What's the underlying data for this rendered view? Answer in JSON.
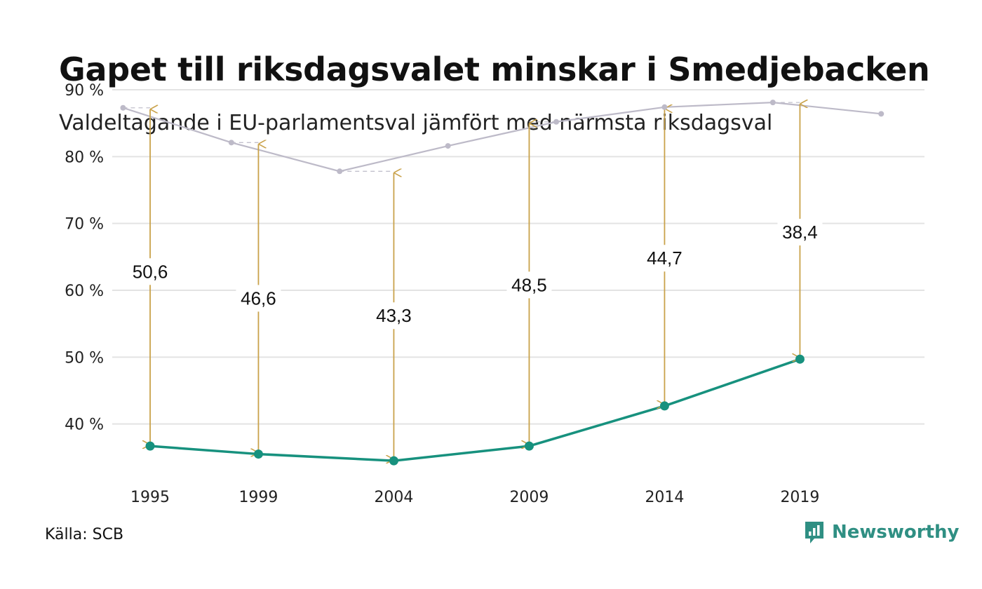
{
  "header": {
    "title": "Gapet till riksdagsvalet minskar i Smedjebacken",
    "subtitle": "Valdeltagande i EU-parlamentsval jämfört med närmsta riksdagsval"
  },
  "footer": {
    "source": "Källa: SCB",
    "brand": "Newsworthy",
    "brand_icon": "bar-chart-speech-bubble-icon"
  },
  "colors": {
    "eu_line": "#17917e",
    "riksdag_line": "#bdbac8",
    "gap_arrow": "#c9a24a",
    "grid": "#e3e3e3",
    "brand": "#2f8f83"
  },
  "chart_data": {
    "type": "line",
    "ylim": [
      30,
      90
    ],
    "yticks": [
      {
        "value": 40,
        "label": "40 %"
      },
      {
        "value": 50,
        "label": "50 %"
      },
      {
        "value": 60,
        "label": "60 %"
      },
      {
        "value": 70,
        "label": "70 %"
      },
      {
        "value": 80,
        "label": "80 %"
      },
      {
        "value": 90,
        "label": "90 %"
      }
    ],
    "xlim": [
      1993.6,
      2023.6
    ],
    "xticks": [
      {
        "value": 1995,
        "label": "1995"
      },
      {
        "value": 1999,
        "label": "1999"
      },
      {
        "value": 2004,
        "label": "2004"
      },
      {
        "value": 2009,
        "label": "2009"
      },
      {
        "value": 2014,
        "label": "2014"
      },
      {
        "value": 2019,
        "label": "2019"
      }
    ],
    "grid": true,
    "series": [
      {
        "key": "riksdag",
        "x": [
          1994,
          1998,
          2002,
          2006,
          2010,
          2014,
          2018,
          2022
        ],
        "values": [
          87.3,
          82.1,
          77.8,
          81.6,
          85.2,
          87.4,
          88.1,
          86.4
        ]
      },
      {
        "key": "eu",
        "x": [
          1995,
          1999,
          2004,
          2009,
          2014,
          2019
        ],
        "values": [
          36.7,
          35.5,
          34.5,
          36.7,
          42.7,
          49.7
        ]
      }
    ],
    "gaps": [
      {
        "x": 1995,
        "ref_x": 1994,
        "top": 87.3,
        "bottom": 36.7,
        "label": "50,6",
        "label_y": 62.8
      },
      {
        "x": 1999,
        "ref_x": 1998,
        "top": 82.1,
        "bottom": 35.5,
        "label": "46,6",
        "label_y": 58.8
      },
      {
        "x": 2004,
        "ref_x": 2002,
        "top": 77.8,
        "bottom": 34.5,
        "label": "43,3",
        "label_y": 56.2
      },
      {
        "x": 2009,
        "ref_x": 2010,
        "top": 85.2,
        "bottom": 36.7,
        "label": "48,5",
        "label_y": 60.8
      },
      {
        "x": 2014,
        "ref_x": 2014,
        "top": 87.4,
        "bottom": 42.7,
        "label": "44,7",
        "label_y": 64.8
      },
      {
        "x": 2019,
        "ref_x": 2018,
        "top": 88.1,
        "bottom": 49.7,
        "label": "38,4",
        "label_y": 68.7
      }
    ]
  }
}
